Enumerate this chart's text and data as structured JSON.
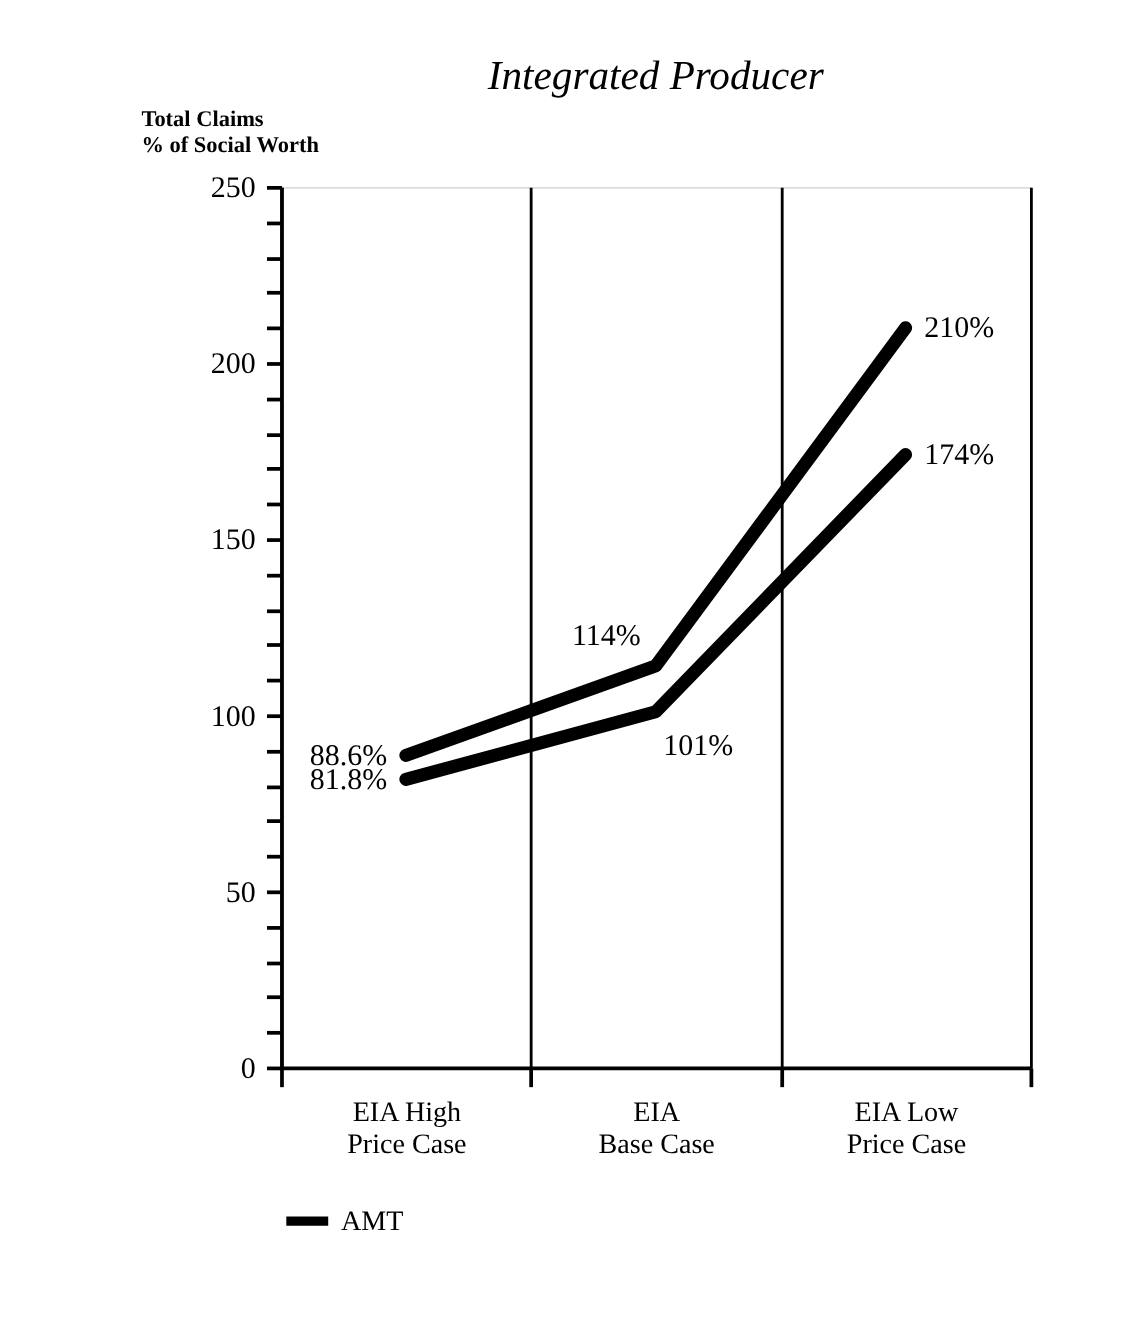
{
  "chart_data": {
    "type": "line",
    "title": "Integrated Producer",
    "ylabel": "Total Claims\n% of Social Worth",
    "categories": [
      "EIA High\nPrice Case",
      "EIA\nBase Case",
      "EIA Low\nPrice Case"
    ],
    "series": [
      {
        "color": "#000000",
        "values": [
          88.6,
          114,
          210
        ],
        "value_labels": [
          "88.6%",
          "114%",
          "210%"
        ]
      },
      {
        "name": "AMT",
        "color": "#000000",
        "values": [
          81.8,
          101,
          174
        ],
        "value_labels": [
          "81.8%",
          "101%",
          "174%"
        ]
      }
    ],
    "ylim": [
      0,
      250
    ],
    "yticks": [
      0,
      {
        "value": 10,
        "label": null
      },
      {
        "value": 20,
        "label": null
      },
      {
        "value": 30,
        "label": null
      },
      {
        "value": 40,
        "label": null
      },
      50,
      {
        "value": 60,
        "label": null
      },
      {
        "value": 70,
        "label": null
      },
      {
        "value": 80,
        "label": null
      },
      {
        "value": 90,
        "label": null
      },
      100,
      {
        "value": 110,
        "label": null
      },
      {
        "value": 120,
        "label": null
      },
      {
        "value": 130,
        "label": null
      },
      {
        "value": 140,
        "label": null
      },
      150,
      {
        "value": 160,
        "label": null
      },
      {
        "value": 170,
        "label": null
      },
      {
        "value": 180,
        "label": null
      },
      {
        "value": 190,
        "label": null
      },
      200,
      {
        "value": 210,
        "label": null
      },
      {
        "value": 220,
        "label": null
      },
      {
        "value": 230,
        "label": null
      },
      {
        "value": 240,
        "label": null
      },
      250
    ],
    "grid": "x",
    "legend": "bottom left",
    "marker": "none",
    "line_style": "solid"
  }
}
